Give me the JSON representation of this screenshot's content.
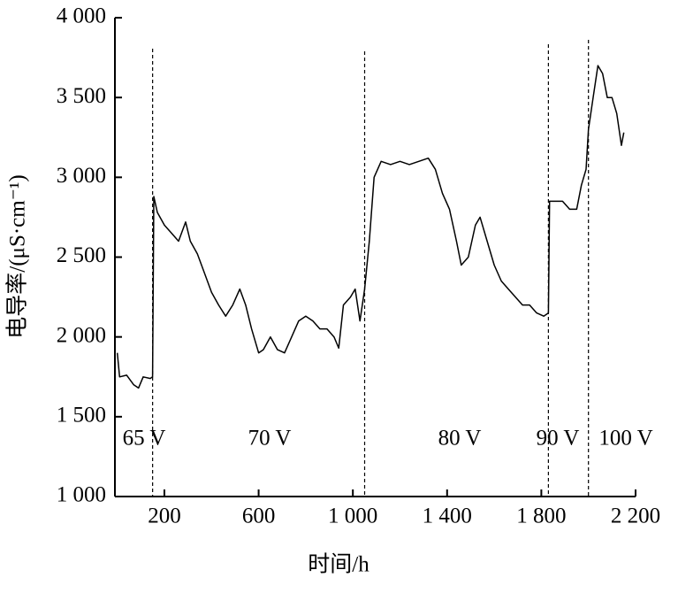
{
  "chart_data": {
    "type": "line",
    "xlabel": "时间/h",
    "ylabel": "电导率/(μS·cm⁻¹)",
    "x": [
      0,
      10,
      40,
      70,
      90,
      110,
      140,
      150,
      155,
      170,
      200,
      230,
      260,
      290,
      310,
      340,
      370,
      400,
      430,
      460,
      490,
      520,
      545,
      570,
      600,
      620,
      650,
      680,
      710,
      740,
      770,
      800,
      830,
      860,
      890,
      920,
      940,
      960,
      990,
      1010,
      1030,
      1050,
      1070,
      1090,
      1120,
      1160,
      1200,
      1240,
      1280,
      1320,
      1350,
      1380,
      1410,
      1440,
      1460,
      1490,
      1520,
      1540,
      1570,
      1600,
      1630,
      1660,
      1690,
      1720,
      1750,
      1780,
      1810,
      1830,
      1835,
      1860,
      1890,
      1920,
      1950,
      1970,
      1990,
      2000,
      2020,
      2040,
      2060,
      2080,
      2100,
      2120,
      2140,
      2150
    ],
    "values": [
      1900,
      1750,
      1760,
      1700,
      1680,
      1750,
      1740,
      1750,
      2880,
      2780,
      2700,
      2650,
      2600,
      2720,
      2600,
      2520,
      2400,
      2280,
      2200,
      2130,
      2200,
      2300,
      2200,
      2050,
      1900,
      1920,
      2000,
      1920,
      1900,
      2000,
      2100,
      2130,
      2100,
      2050,
      2050,
      2000,
      1930,
      2200,
      2250,
      2300,
      2100,
      2300,
      2600,
      3000,
      3100,
      3080,
      3100,
      3080,
      3100,
      3120,
      3050,
      2900,
      2800,
      2600,
      2450,
      2500,
      2700,
      2750,
      2600,
      2450,
      2350,
      2300,
      2250,
      2200,
      2200,
      2150,
      2130,
      2150,
      2850,
      2850,
      2850,
      2800,
      2800,
      2950,
      3050,
      3300,
      3500,
      3700,
      3650,
      3500,
      3500,
      3400,
      3200,
      3280
    ],
    "color": "#000000",
    "xlim": [
      -10,
      2200
    ],
    "xticks": [
      200,
      600,
      {
        "value": 1000,
        "label": "1 000"
      },
      {
        "value": 1400,
        "label": "1 400"
      },
      {
        "value": 1800,
        "label": "1 800"
      },
      {
        "value": 2200,
        "label": "2 200"
      }
    ],
    "ylim": [
      1000,
      4000
    ],
    "yticks": [
      {
        "value": 1000,
        "label": "1 000"
      },
      {
        "value": 1500,
        "label": "1 500"
      },
      {
        "value": 2000,
        "label": "2 000"
      },
      {
        "value": 2500,
        "label": "2 500"
      },
      {
        "value": 3000,
        "label": "3 000"
      },
      {
        "value": 3500,
        "label": "3 500"
      },
      {
        "value": 4000,
        "label": "4 000"
      }
    ],
    "vlines": [
      150,
      1050,
      1830,
      2000
    ],
    "annotations": [
      "65 V",
      "70 V",
      "80 V",
      "90 V",
      "100 V"
    ]
  }
}
